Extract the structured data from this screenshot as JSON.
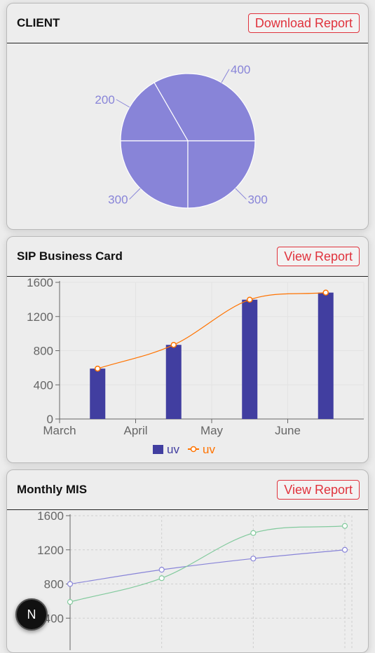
{
  "client_card": {
    "title": "CLIENT",
    "button_label": "Download Report",
    "chart_data": {
      "type": "pie",
      "values": [
        400,
        200,
        300,
        300
      ],
      "labels": [
        "400",
        "200",
        "300",
        "300"
      ],
      "color": "#8884d8"
    }
  },
  "sip_card": {
    "title": "SIP Business Card",
    "button_label": "View Report",
    "chart_data": {
      "type": "bar",
      "categories": [
        "March",
        "April",
        "May",
        "June"
      ],
      "x_ticks": [
        "March",
        "April",
        "May",
        "June"
      ],
      "y_ticks": [
        "0",
        "400",
        "800",
        "1200",
        "1600"
      ],
      "ylim": [
        0,
        1600
      ],
      "series": [
        {
          "name": "uv",
          "kind": "bar",
          "color": "#413ea0",
          "values": [
            590,
            868,
            1397,
            1480
          ]
        },
        {
          "name": "uv",
          "kind": "line",
          "color": "#ff7300",
          "values": [
            590,
            868,
            1397,
            1480
          ]
        }
      ],
      "legend_position": "bottom",
      "grid": true
    }
  },
  "mis_card": {
    "title": "Monthly MIS",
    "button_label": "View Report",
    "chart_data": {
      "type": "line",
      "y_ticks": [
        "400",
        "800",
        "1200",
        "1600"
      ],
      "ylim": [
        0,
        1600
      ],
      "series": [
        {
          "color": "#8884d8",
          "values": [
            800,
            967,
            1098,
            1200
          ]
        },
        {
          "color": "#82ca9d",
          "values": [
            590,
            868,
            1397,
            1480
          ]
        }
      ],
      "grid": true
    }
  },
  "fab": {
    "label": "N"
  }
}
